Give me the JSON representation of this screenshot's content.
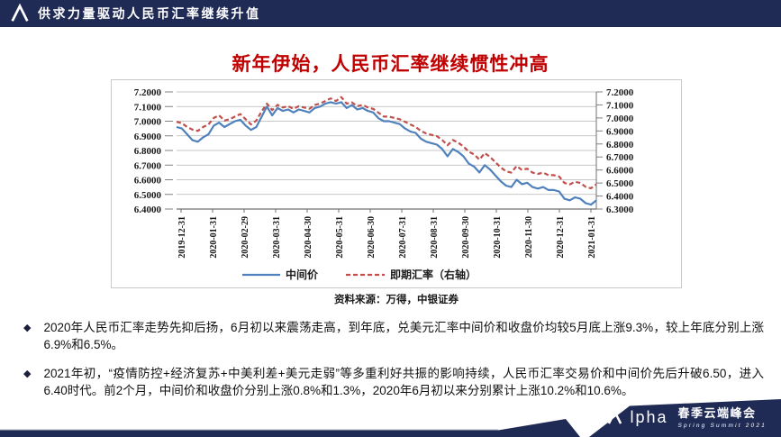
{
  "header": {
    "title": "供求力量驱动人民币汇率继续升值"
  },
  "slide_title": "新年伊始，人民币汇率继续惯性冲高",
  "chart_data": {
    "type": "line",
    "title": "",
    "x_labels": [
      "2019-12-31",
      "2020-01-31",
      "2020-02-29",
      "2020-03-31",
      "2020-04-30",
      "2020-05-31",
      "2020-06-30",
      "2020-07-31",
      "2020-08-31",
      "2020-09-30",
      "2020-10-31",
      "2020-11-30",
      "2020-12-31",
      "2021-01-31"
    ],
    "left_axis": {
      "min": 6.4,
      "max": 7.2,
      "ticks": [
        "7.2000",
        "7.1000",
        "7.0000",
        "6.9000",
        "6.8000",
        "6.7000",
        "6.6000",
        "6.5000",
        "6.4000"
      ]
    },
    "right_axis": {
      "min": 6.3,
      "max": 7.2,
      "ticks": [
        "7.2000",
        "7.1000",
        "7.0000",
        "6.9000",
        "6.8000",
        "6.7000",
        "6.6000",
        "6.5000",
        "6.4000",
        "6.3000"
      ]
    },
    "grid": "horizontal",
    "legend_position": "bottom",
    "series": [
      {
        "name": "中间价",
        "axis": "left",
        "color": "#4f81bd",
        "style": "solid",
        "values": [
          6.96,
          6.95,
          6.91,
          6.87,
          6.86,
          6.89,
          6.91,
          6.97,
          6.99,
          6.96,
          6.98,
          7.0,
          7.01,
          6.97,
          6.94,
          6.96,
          7.03,
          7.1,
          7.04,
          7.09,
          7.07,
          7.08,
          7.06,
          7.08,
          7.07,
          7.06,
          7.09,
          7.1,
          7.12,
          7.13,
          7.12,
          7.13,
          7.09,
          7.11,
          7.08,
          7.09,
          7.07,
          7.06,
          7.02,
          7.0,
          7.0,
          6.99,
          6.98,
          6.95,
          6.93,
          6.92,
          6.88,
          6.86,
          6.85,
          6.84,
          6.81,
          6.76,
          6.81,
          6.79,
          6.76,
          6.71,
          6.69,
          6.65,
          6.7,
          6.67,
          6.63,
          6.59,
          6.56,
          6.55,
          6.6,
          6.57,
          6.58,
          6.55,
          6.54,
          6.55,
          6.53,
          6.53,
          6.52,
          6.47,
          6.46,
          6.48,
          6.47,
          6.44,
          6.43,
          6.46
        ]
      },
      {
        "name": "即期汇率（右轴）",
        "axis": "right",
        "color": "#c0504d",
        "style": "dashed",
        "values": [
          6.97,
          6.96,
          6.93,
          6.91,
          6.9,
          6.93,
          6.95,
          7.0,
          7.02,
          6.98,
          6.99,
          7.01,
          7.03,
          6.99,
          6.95,
          6.98,
          7.05,
          7.11,
          7.06,
          7.1,
          7.08,
          7.09,
          7.07,
          7.09,
          7.08,
          7.07,
          7.1,
          7.11,
          7.13,
          7.15,
          7.13,
          7.16,
          7.11,
          7.12,
          7.09,
          7.1,
          7.08,
          7.07,
          7.04,
          7.01,
          7.01,
          7.0,
          6.99,
          6.97,
          6.95,
          6.93,
          6.9,
          6.88,
          6.87,
          6.86,
          6.83,
          6.79,
          6.83,
          6.81,
          6.78,
          6.74,
          6.72,
          6.68,
          6.73,
          6.7,
          6.66,
          6.62,
          6.59,
          6.58,
          6.63,
          6.6,
          6.61,
          6.58,
          6.57,
          6.58,
          6.56,
          6.56,
          6.55,
          6.5,
          6.49,
          6.51,
          6.5,
          6.47,
          6.46,
          6.49
        ]
      }
    ],
    "source": "资料来源：万得，中银证券"
  },
  "bullets": {
    "marker": "◆",
    "items": [
      {
        "text": "2020年人民币汇率走势先抑后扬，6月初以来震荡走高，到年底，兑美元汇率中间价和收盘价均较5月底上涨9.3%，较上年底分别上涨6.9%和6.5%。"
      },
      {
        "text": "2021年初，“疫情防控+经济复苏+中美利差+美元走弱”等多重利好共振的影响持续，人民币汇率交易价和中间价先后升破6.50，进入6.40时代。前2个月，中间价和收盘价分别上涨0.8%和1.3%，2020年6月初以来分别累计上涨10.2%和10.6%。"
      }
    ]
  },
  "footer": {
    "brand_rest": "lpha",
    "cn_title": "春季云端峰会",
    "en_title": "Spring Summit 2021"
  },
  "colors": {
    "navy": "#1f2a55",
    "title_red": "#c00000",
    "line_blue": "#4f81bd",
    "line_red": "#c0504d",
    "gridline": "#b5b5b5"
  }
}
